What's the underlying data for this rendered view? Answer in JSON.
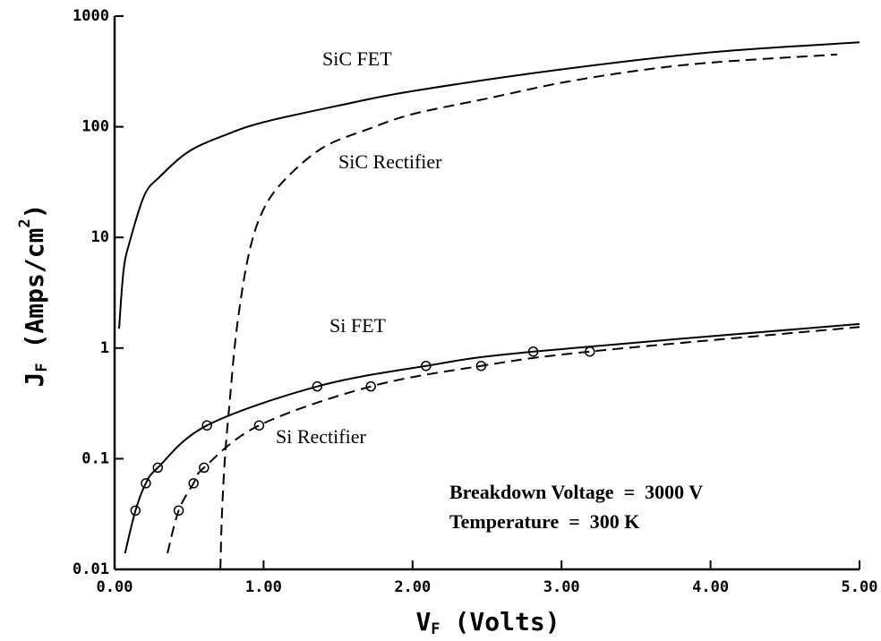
{
  "chart_data": {
    "type": "line",
    "x_label": {
      "main": "V",
      "sub": "F",
      "rest": "(Volts)"
    },
    "y_label": {
      "main": "J",
      "sub": "F",
      "rest": "(Amps/cm",
      "sup": "2",
      "end": ")"
    },
    "xlim": [
      0,
      5
    ],
    "ylim": [
      0.01,
      1000
    ],
    "ylog": true,
    "xticks": [
      {
        "value": 0,
        "label": "0.00"
      },
      {
        "value": 1,
        "label": "1.00"
      },
      {
        "value": 2,
        "label": "2.00"
      },
      {
        "value": 3,
        "label": "3.00"
      },
      {
        "value": 4,
        "label": "4.00"
      },
      {
        "value": 5,
        "label": "5.00"
      }
    ],
    "yticks": [
      0.01,
      0.1,
      1,
      10,
      100,
      1000
    ],
    "series": [
      {
        "name": "SiC FET",
        "color": "#000000",
        "dash": false,
        "markers": false,
        "x": [
          0.03,
          0.06,
          0.1,
          0.2,
          0.3,
          0.5,
          0.75,
          1.0,
          1.5,
          2.0,
          3.0,
          4.0,
          5.0
        ],
        "values": [
          1.5,
          5,
          9,
          24,
          35,
          60,
          85,
          110,
          155,
          210,
          330,
          470,
          580
        ]
      },
      {
        "name": "SiC Rectifier",
        "color": "#000000",
        "dash": true,
        "markers": false,
        "x": [
          0.71,
          0.72,
          0.74,
          0.77,
          0.82,
          0.9,
          1.0,
          1.15,
          1.4,
          1.7,
          2.0,
          2.5,
          3.0,
          3.5,
          4.0,
          4.85
        ],
        "values": [
          0.01,
          0.03,
          0.1,
          0.3,
          1.5,
          7,
          18,
          34,
          65,
          95,
          130,
          180,
          250,
          320,
          380,
          450
        ]
      },
      {
        "name": "Si FET",
        "color": "#000000",
        "dash": false,
        "markers": true,
        "x": [
          0.07,
          0.14,
          0.21,
          0.29,
          0.62,
          1.36,
          2.09,
          2.81,
          5.0
        ],
        "values": [
          0.014,
          0.034,
          0.06,
          0.083,
          0.2,
          0.45,
          0.69,
          0.93,
          1.65
        ]
      },
      {
        "name": "Si Rectifier",
        "color": "#000000",
        "dash": true,
        "markers": true,
        "x": [
          0.355,
          0.43,
          0.53,
          0.6,
          0.97,
          1.72,
          2.46,
          3.19,
          5.0
        ],
        "values": [
          0.014,
          0.034,
          0.06,
          0.083,
          0.2,
          0.45,
          0.69,
          0.93,
          1.55
        ]
      }
    ],
    "annotations": [
      "Breakdown Voltage  =  3000 V",
      "Temperature  =  300 K"
    ]
  }
}
